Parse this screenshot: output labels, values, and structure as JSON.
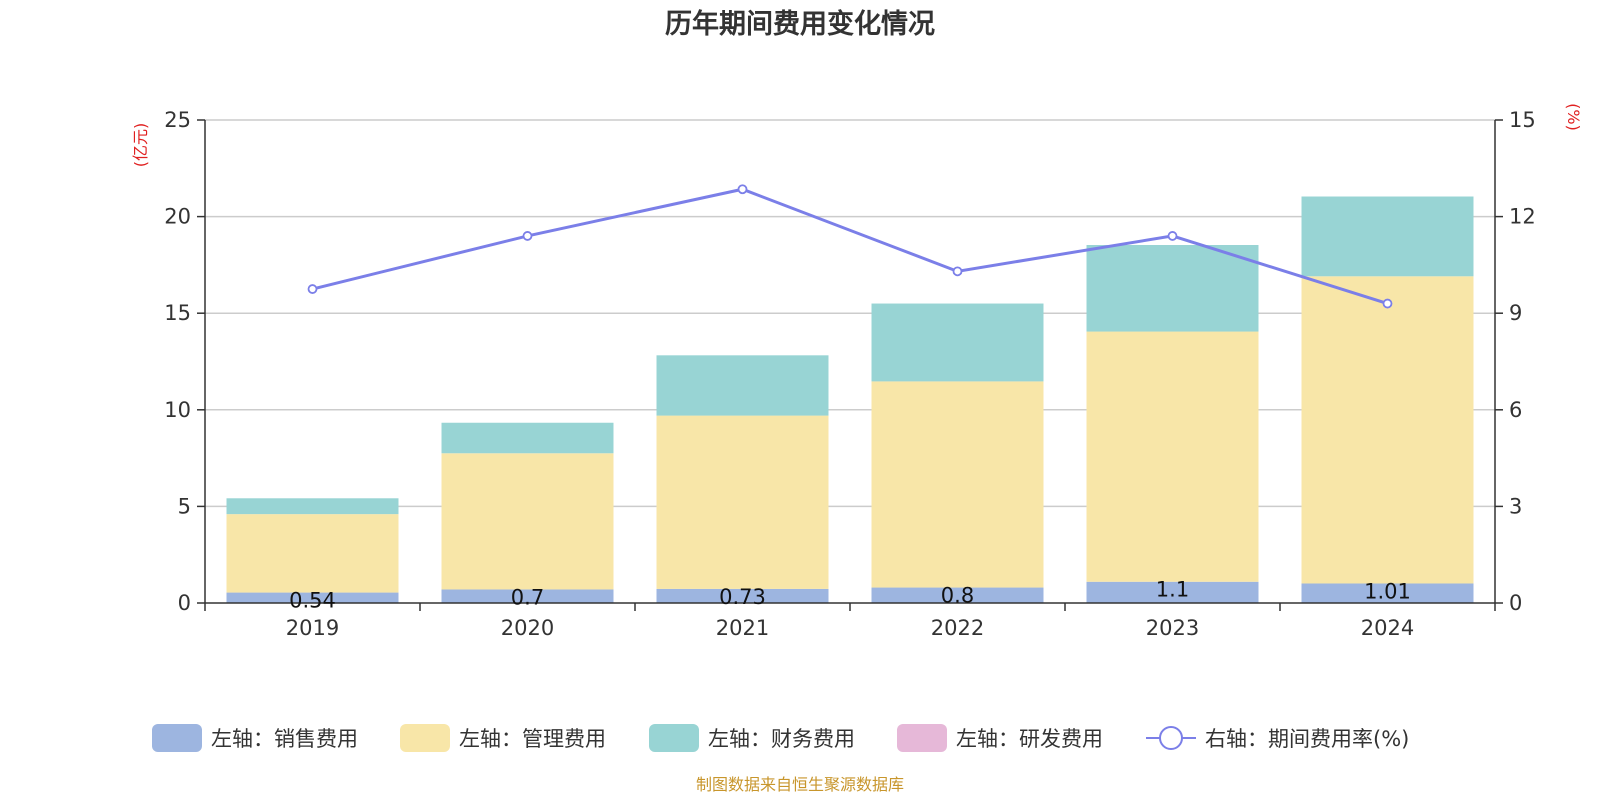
{
  "chart_data": {
    "type": "bar",
    "title": "历年期间费用变化情况",
    "categories": [
      "2019",
      "2020",
      "2021",
      "2022",
      "2023",
      "2024"
    ],
    "left_axis": {
      "unit": "(亿元)",
      "ylim": [
        0,
        25
      ],
      "ticks": [
        "0",
        "5",
        "10",
        "15",
        "20",
        "25"
      ]
    },
    "right_axis": {
      "unit": "(%)",
      "ylim": [
        0,
        15
      ],
      "ticks": [
        "0",
        "3",
        "6",
        "9",
        "12",
        "15"
      ]
    },
    "stacked": true,
    "grid": true,
    "legend_position": "bottom",
    "series": [
      {
        "name": "左轴：销售费用",
        "type": "bar",
        "axis": "left",
        "color": "#9db5e0",
        "values": [
          0.54,
          0.7,
          0.73,
          0.8,
          1.1,
          1.01
        ],
        "labels": [
          "0.54",
          "0.7",
          "0.73",
          "0.8",
          "1.1",
          "1.01"
        ]
      },
      {
        "name": "左轴：管理费用",
        "type": "bar",
        "axis": "left",
        "color": "#f8e6a8",
        "values": [
          4.06,
          7.05,
          8.97,
          10.67,
          12.95,
          15.9
        ]
      },
      {
        "name": "左轴：财务费用",
        "type": "bar",
        "axis": "left",
        "color": "#98d4d4",
        "values": [
          0.82,
          1.58,
          3.12,
          4.03,
          4.48,
          4.13
        ]
      },
      {
        "name": "左轴：研发费用",
        "type": "bar",
        "axis": "left",
        "color": "#e6b8d8",
        "values": [
          0,
          0,
          0,
          0,
          0,
          0
        ]
      },
      {
        "name": "右轴：期间费用率(%)",
        "type": "line",
        "axis": "right",
        "color": "#7b7fe8",
        "values": [
          9.75,
          11.4,
          12.85,
          10.3,
          11.4,
          9.3
        ]
      }
    ]
  },
  "footer": {
    "source": "制图数据来自恒生聚源数据库"
  }
}
